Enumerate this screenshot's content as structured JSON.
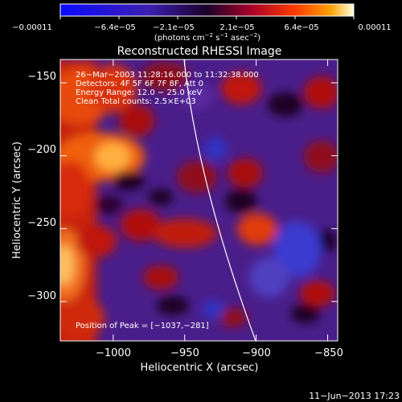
{
  "chart_data": {
    "type": "heatmap",
    "title": "Reconstructed RHESSI Image",
    "xlabel": "Heliocentric X (arcsec)",
    "ylabel": "Heliocentric Y (arcsec)",
    "xlim": [
      -1037,
      -843
    ],
    "ylim": [
      -327,
      -134
    ],
    "xticks": [
      -1000,
      -950,
      -900,
      -850
    ],
    "xtick_labels": [
      "−1000",
      "−950",
      "−900",
      "−850"
    ],
    "yticks": [
      -150,
      -200,
      -250,
      -300
    ],
    "ytick_labels": [
      "−150",
      "−200",
      "−250",
      "−300"
    ],
    "colorbar": {
      "ticks": [
        "−0.00011",
        "−6.4e−05",
        "−2.1e−05",
        "2.1e−05",
        "6.4e−05",
        "0.00011"
      ],
      "unit_prefix": "(photons cm",
      "unit_exp1": "−2",
      "unit_mid": " s",
      "unit_exp2": "−1",
      "unit_mid2": " asec",
      "unit_exp3": "−2",
      "unit_suffix": ")",
      "range": [
        -0.00011,
        0.00011
      ]
    },
    "annotations": [
      "26−Mar−2003 11:28:16.000 to 11:32:38.000",
      "Detectors: 4F 5F 6F 7F 8F, Att 0",
      "Energy Range: 12.0 − 25.0 keV",
      "Clean    Total counts: 2.5×E+03"
    ],
    "peak_label": "Position of Peak = [−1037,−281]",
    "peak": [
      -1037,
      -281
    ],
    "limb_curve": [
      [
        -958,
        -134
      ],
      [
        -945,
        -200
      ],
      [
        -928,
        -260
      ],
      [
        -905,
        -327
      ]
    ]
  },
  "footer": {
    "date": "11−Jun−2013 17:23"
  }
}
